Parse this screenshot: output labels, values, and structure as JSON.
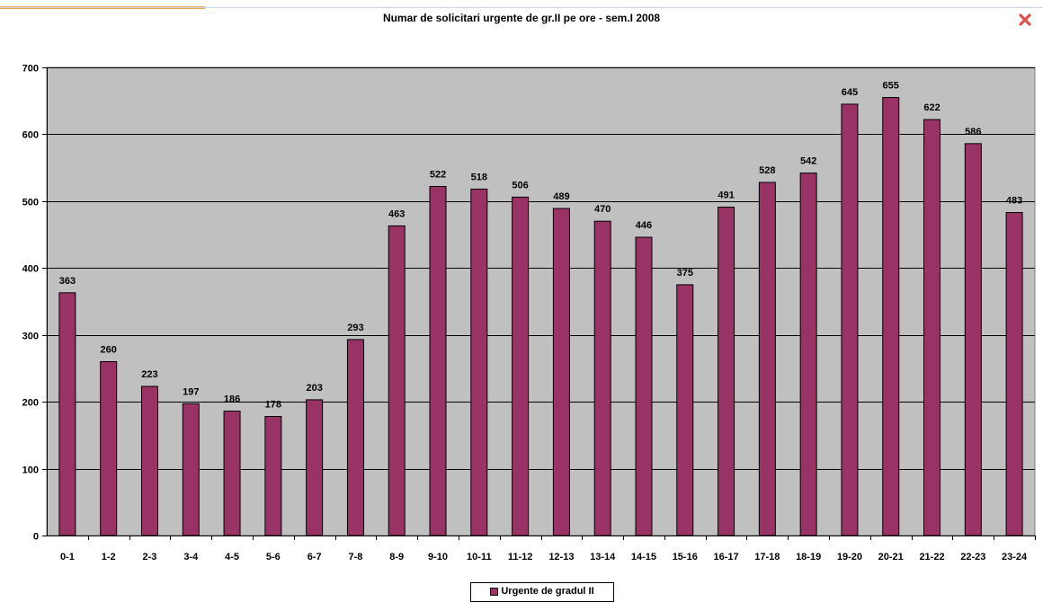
{
  "window": {
    "close_icon": "close-icon",
    "close_color": "#e0504a"
  },
  "chart_data": {
    "type": "bar",
    "title": "Numar de solicitari urgente de gr.II pe ore - sem.I 2008",
    "categories": [
      "0-1",
      "1-2",
      "2-3",
      "3-4",
      "4-5",
      "5-6",
      "6-7",
      "7-8",
      "8-9",
      "9-10",
      "10-11",
      "11-12",
      "12-13",
      "13-14",
      "14-15",
      "15-16",
      "16-17",
      "17-18",
      "18-19",
      "19-20",
      "20-21",
      "21-22",
      "22-23",
      "23-24"
    ],
    "series": [
      {
        "name": "Urgente de gradul II",
        "values": [
          363,
          260,
          223,
          197,
          186,
          178,
          203,
          293,
          463,
          522,
          518,
          506,
          489,
          470,
          446,
          375,
          491,
          528,
          542,
          645,
          655,
          622,
          586,
          483
        ],
        "color": "#993366"
      }
    ],
    "xlabel": "",
    "ylabel": "",
    "ylim": [
      0,
      700
    ],
    "yticks": [
      0,
      100,
      200,
      300,
      400,
      500,
      600,
      700
    ],
    "grid": true,
    "plot_background": "#c0c0c0",
    "data_labels": true,
    "legend_position": "bottom"
  }
}
